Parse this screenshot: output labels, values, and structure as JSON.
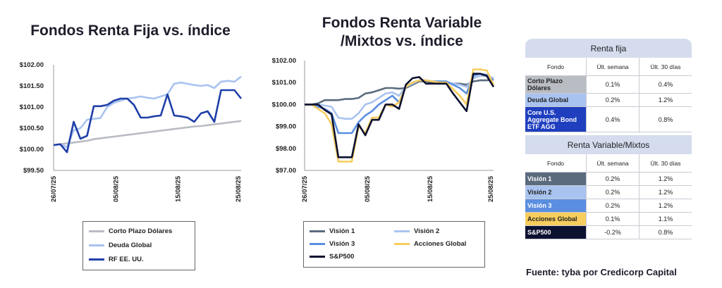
{
  "source": "Fuente: tyba por Credicorp Capital",
  "chart_data": [
    {
      "type": "line",
      "title": "Fondos Renta Fija vs. índice",
      "xlabel": "",
      "ylabel": "",
      "x_ticks": [
        "26/07/25",
        "05/08/25",
        "15/08/25",
        "25/08/25"
      ],
      "y_ticks": [
        "$99.50",
        "$100.00",
        "$100.50",
        "$101.00",
        "$101.50",
        "$102.00"
      ],
      "ylim": [
        99.5,
        102.0
      ],
      "n_points": 29,
      "grid": false,
      "legend_position": "bottom",
      "series": [
        {
          "name": "Corto Plazo Dólares",
          "color": "#b9bcc3",
          "values": [
            100.1,
            100.12,
            100.14,
            100.16,
            100.18,
            100.2,
            100.24,
            100.26,
            100.28,
            100.3,
            100.32,
            100.34,
            100.36,
            100.38,
            100.4,
            100.42,
            100.44,
            100.46,
            100.48,
            100.5,
            100.52,
            100.54,
            100.55,
            100.57,
            100.59,
            100.61,
            100.63,
            100.65,
            100.67
          ]
        },
        {
          "name": "Deuda Global",
          "color": "#a9c3f0",
          "values": [
            100.1,
            100.12,
            100.05,
            100.45,
            100.5,
            100.7,
            100.72,
            100.74,
            101.0,
            101.1,
            101.15,
            101.2,
            101.22,
            101.25,
            101.22,
            101.2,
            101.25,
            101.3,
            101.55,
            101.58,
            101.55,
            101.52,
            101.5,
            101.52,
            101.45,
            101.6,
            101.62,
            101.6,
            101.72
          ]
        },
        {
          "name": "RF EE. UU.",
          "color": "#1f3fa8",
          "values": [
            100.1,
            100.12,
            99.93,
            100.65,
            100.25,
            100.32,
            101.02,
            101.02,
            101.05,
            101.15,
            101.2,
            101.2,
            101.05,
            100.75,
            100.75,
            100.78,
            100.8,
            101.3,
            100.8,
            100.78,
            100.75,
            100.65,
            100.85,
            100.9,
            100.65,
            101.4,
            101.4,
            101.4,
            101.2
          ]
        }
      ]
    },
    {
      "type": "line",
      "title": "Fondos Renta Variable /Mixtos vs. índice",
      "xlabel": "",
      "ylabel": "",
      "x_ticks": [
        "26/07/25",
        "05/08/25",
        "15/08/25",
        "25/08/25"
      ],
      "y_ticks": [
        "$97.00",
        "$98.00",
        "$99.00",
        "$100.00",
        "$101.00",
        "$102.00"
      ],
      "ylim": [
        97.0,
        102.0
      ],
      "n_points": 29,
      "grid": false,
      "legend_position": "bottom",
      "series": [
        {
          "name": "Visión 1",
          "color": "#5b6b7e",
          "values": [
            100.0,
            100.0,
            100.05,
            100.2,
            100.2,
            100.2,
            100.25,
            100.25,
            100.3,
            100.5,
            100.55,
            100.65,
            100.75,
            100.75,
            100.72,
            100.75,
            100.9,
            101.05,
            101.05,
            101.0,
            101.0,
            101.0,
            100.95,
            100.95,
            100.9,
            101.05,
            101.1,
            101.1,
            101.15
          ]
        },
        {
          "name": "Visión 2",
          "color": "#a9c3f0",
          "values": [
            100.0,
            100.0,
            100.0,
            99.95,
            99.9,
            99.4,
            99.35,
            99.35,
            99.6,
            100.0,
            100.1,
            100.3,
            100.5,
            100.55,
            100.4,
            100.8,
            100.95,
            101.1,
            101.1,
            101.05,
            101.05,
            101.0,
            100.95,
            100.9,
            100.8,
            101.2,
            101.3,
            101.3,
            101.2
          ]
        },
        {
          "name": "Visión 3",
          "color": "#5a8ee0",
          "values": [
            100.0,
            100.0,
            99.9,
            99.8,
            99.6,
            98.7,
            98.7,
            98.7,
            99.2,
            99.5,
            99.7,
            100.0,
            100.2,
            100.4,
            100.1,
            100.8,
            101.0,
            101.1,
            101.1,
            101.05,
            101.05,
            101.05,
            100.9,
            100.75,
            100.5,
            101.3,
            101.4,
            101.35,
            101.1
          ]
        },
        {
          "name": "Acciones Global",
          "color": "#f7cd5c",
          "values": [
            100.0,
            100.0,
            99.8,
            99.6,
            99.1,
            97.4,
            97.4,
            97.4,
            99.0,
            98.7,
            99.4,
            99.4,
            100.0,
            99.9,
            100.1,
            100.8,
            101.0,
            101.1,
            101.1,
            101.05,
            101.0,
            101.0,
            100.7,
            100.4,
            100.0,
            101.6,
            101.6,
            101.55,
            100.9
          ]
        },
        {
          "name": "S&P500",
          "color": "#0c1130",
          "values": [
            100.0,
            100.0,
            100.0,
            99.75,
            99.55,
            97.6,
            97.6,
            97.6,
            99.1,
            98.6,
            99.3,
            99.3,
            100.0,
            100.0,
            99.8,
            100.9,
            101.2,
            101.25,
            100.95,
            100.95,
            100.95,
            100.95,
            100.5,
            100.1,
            99.7,
            101.4,
            101.4,
            101.3,
            100.8
          ]
        }
      ]
    }
  ],
  "tables": {
    "renta_fija": {
      "title": "Renta fija",
      "headers": [
        "Fondo",
        "Últ. semana",
        "Últ. 30 días"
      ],
      "rows": [
        {
          "name": "Corto Plazo Dólares",
          "week": "0.1%",
          "month": "0.4%",
          "color": "#b9bcc3",
          "text_white": false
        },
        {
          "name": "Deuda Global",
          "week": "0.2%",
          "month": "1.2%",
          "color": "#a9c3f0",
          "text_white": false
        },
        {
          "name": "Core U.S. Aggregate Bond ETF AGG",
          "week": "0.4%",
          "month": "0.8%",
          "color": "#1f3fbf",
          "text_white": true
        }
      ]
    },
    "renta_variable": {
      "title": "Renta Variable/Mixtos",
      "headers": [
        "Fondo",
        "Últ. semana",
        "Últ. 30 días"
      ],
      "rows": [
        {
          "name": "Visión 1",
          "week": "0.2%",
          "month": "1.2%",
          "color": "#5b6b7e",
          "text_white": true
        },
        {
          "name": "Visión 2",
          "week": "0.2%",
          "month": "1.2%",
          "color": "#a9c3f0",
          "text_white": false
        },
        {
          "name": "Visión 3",
          "week": "0.2%",
          "month": "1.2%",
          "color": "#5a8ee0",
          "text_white": true
        },
        {
          "name": "Acciones Global",
          "week": "0.1%",
          "month": "1.1%",
          "color": "#f7cd5c",
          "text_white": false
        },
        {
          "name": "S&P500",
          "week": "-0.2%",
          "month": "0.8%",
          "color": "#0c1130",
          "text_white": true
        }
      ]
    }
  }
}
